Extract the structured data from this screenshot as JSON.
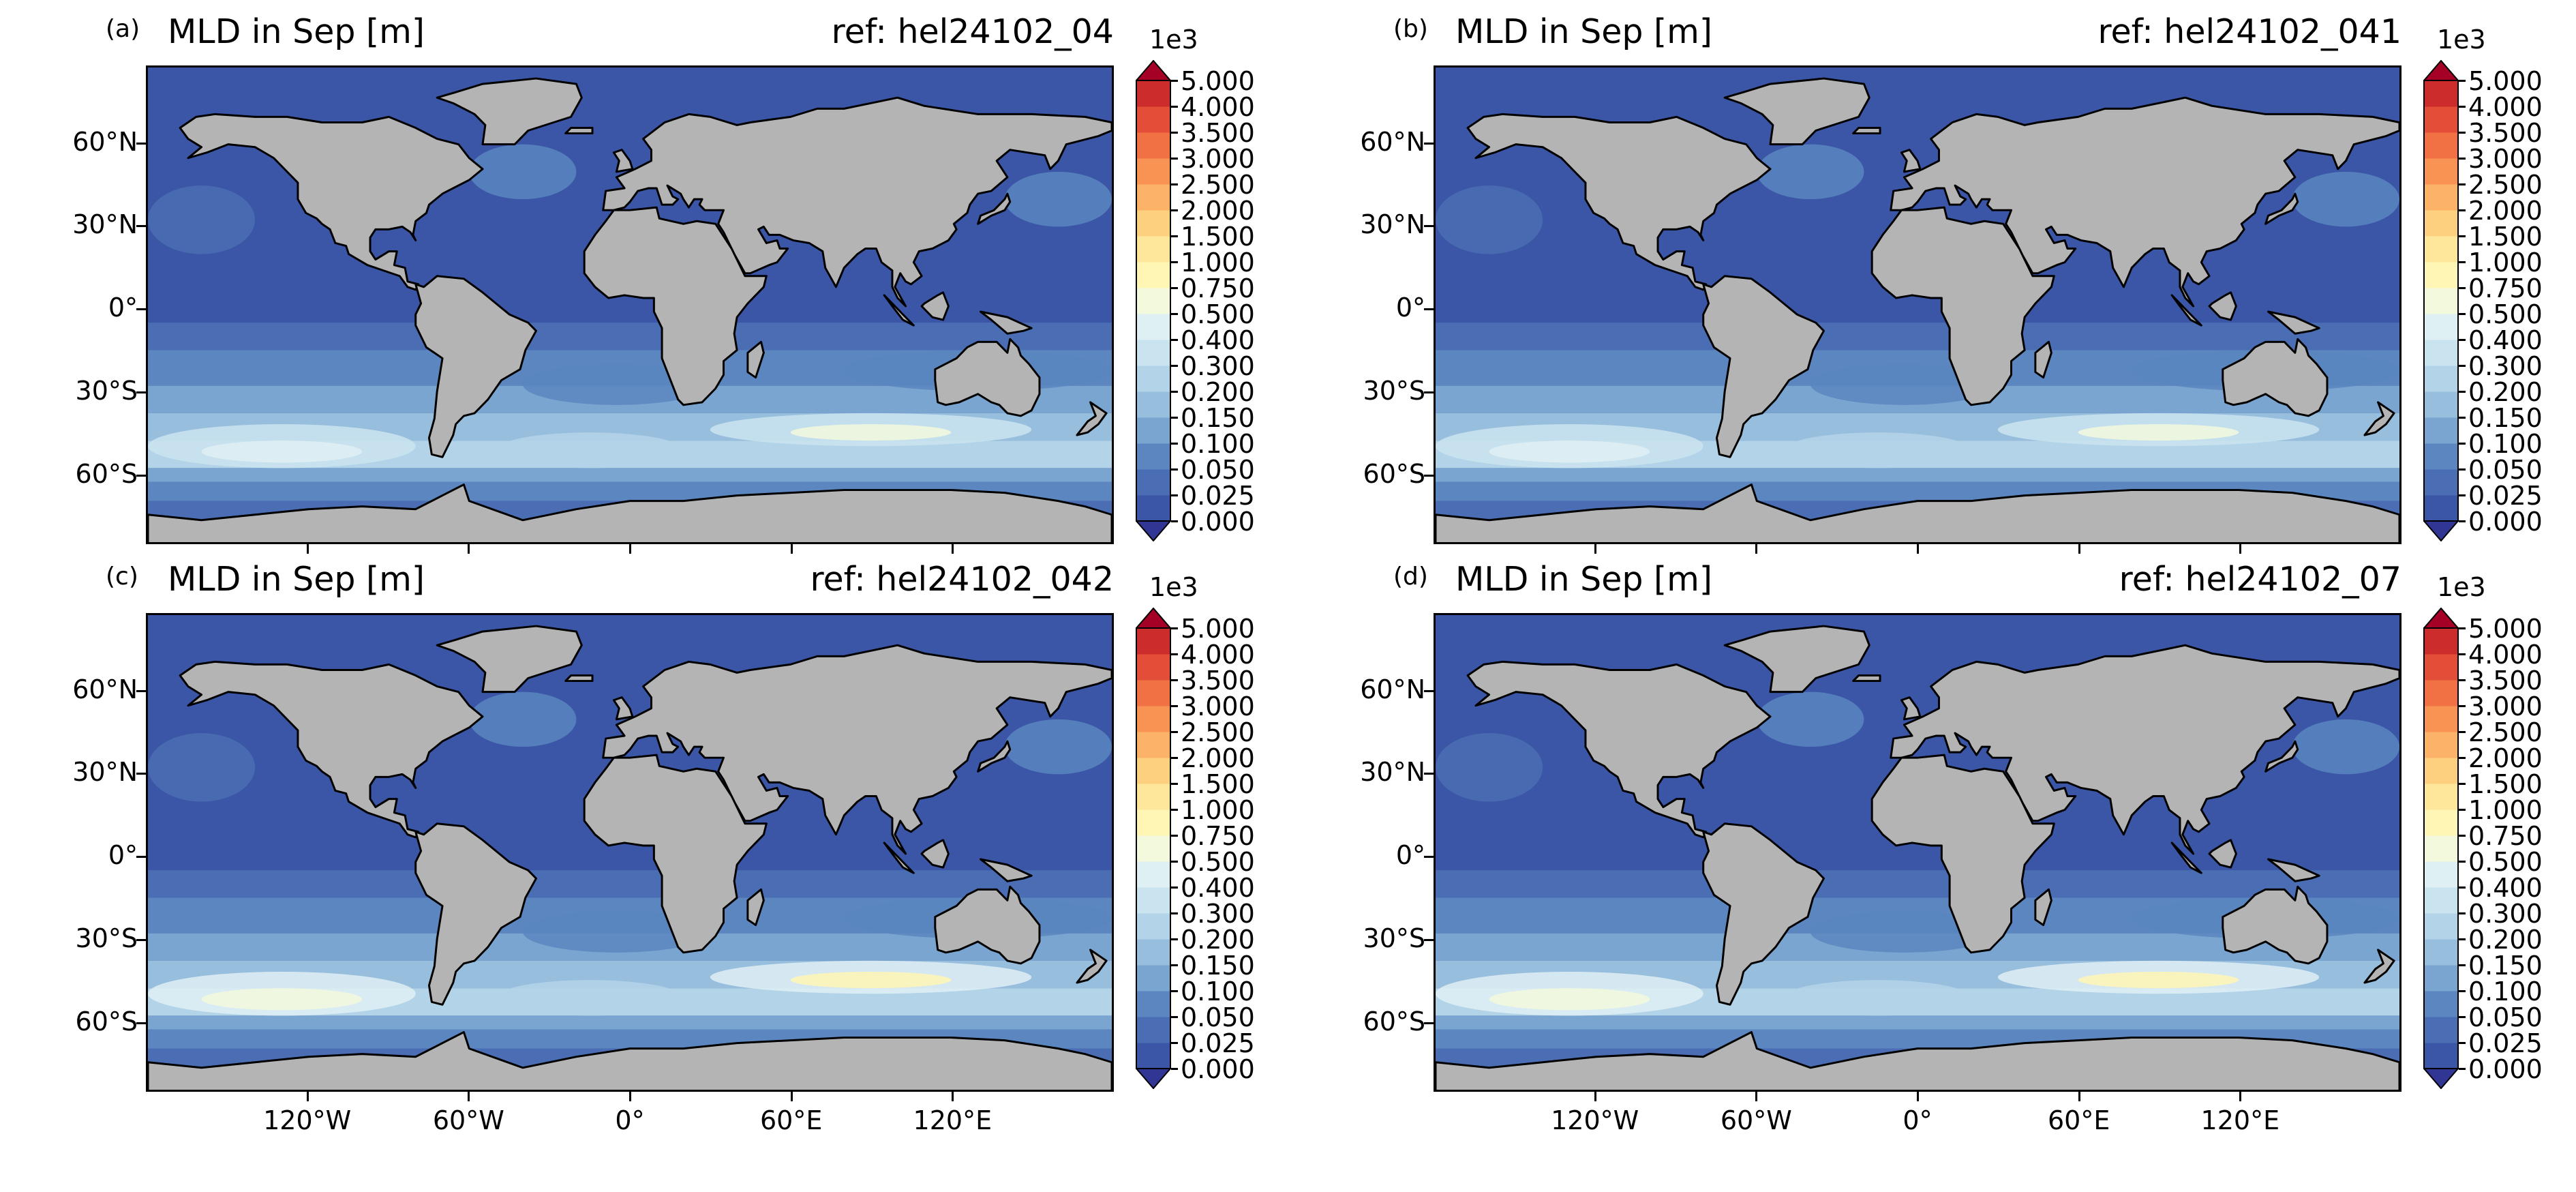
{
  "panels": [
    {
      "letter": "(a)",
      "title": "MLD in Sep [m]",
      "ref": "ref: hel24102_04",
      "show_x_labels": false
    },
    {
      "letter": "(b)",
      "title": "MLD in Sep [m]",
      "ref": "ref: hel24102_041",
      "show_x_labels": false
    },
    {
      "letter": "(c)",
      "title": "MLD in Sep [m]",
      "ref": "ref: hel24102_042",
      "show_x_labels": true
    },
    {
      "letter": "(d)",
      "title": "MLD in Sep [m]",
      "ref": "ref: hel24102_07",
      "show_x_labels": true
    }
  ],
  "lat_labels": [
    "60°N",
    "30°N",
    "0°",
    "30°S",
    "60°S"
  ],
  "lat_values": [
    60,
    30,
    0,
    -30,
    -60
  ],
  "lon_labels": [
    "120°W",
    "60°W",
    "0°",
    "60°E",
    "120°E"
  ],
  "lon_values": [
    -120,
    -60,
    0,
    60,
    120
  ],
  "colorbar": {
    "scale_label": "1e3",
    "levels": [
      "0.000",
      "0.025",
      "0.050",
      "0.100",
      "0.150",
      "0.200",
      "0.300",
      "0.400",
      "0.500",
      "0.750",
      "1.000",
      "1.500",
      "2.000",
      "2.500",
      "3.000",
      "3.500",
      "4.000",
      "5.000"
    ],
    "colors": [
      "#3b56a6",
      "#4a6db3",
      "#5b86c0",
      "#7aa5d0",
      "#97bedd",
      "#b3d4e8",
      "#cae4ef",
      "#dff0f4",
      "#f2f9dd",
      "#fff5b5",
      "#fee79a",
      "#fdd080",
      "#fcb367",
      "#f99353",
      "#f17145",
      "#e24e37",
      "#cc2c2b"
    ],
    "under_color": "#313695",
    "over_color": "#a50026"
  },
  "colors": {
    "ocean_deep": "#3c5aa6",
    "land": "#b4b4b4",
    "coast": "#000000"
  }
}
